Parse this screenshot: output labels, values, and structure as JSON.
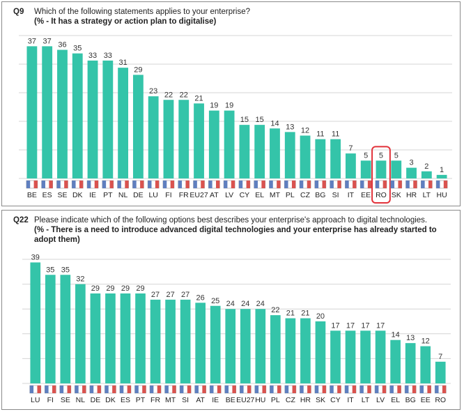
{
  "colors": {
    "bar": "#34c4a9",
    "highlight": "#e2323a",
    "grid": "#d4d4d4"
  },
  "q9": {
    "number": "Q9",
    "question": "Which of the following statements applies to your enterprise?",
    "subtitle": "(% - It has a strategy or action plan to digitalise)"
  },
  "q22": {
    "number": "Q22",
    "question": "Please indicate which of the following options best describes your enterprise's approach to digital technologies.",
    "subtitle": "(% - There is a need to introduce advanced digital technologies and your enterprise has already started to adopt them)"
  },
  "chart_data": [
    {
      "type": "bar",
      "title": "Which of the following statements applies to your enterprise?",
      "subtitle": "(% - It has a strategy or action plan to digitalise)",
      "categories": [
        "BE",
        "ES",
        "SE",
        "DK",
        "IE",
        "PT",
        "NL",
        "DE",
        "LU",
        "FI",
        "FR",
        "EU27",
        "AT",
        "LV",
        "CY",
        "EL",
        "MT",
        "PL",
        "CZ",
        "BG",
        "SI",
        "IT",
        "EE",
        "RO",
        "SK",
        "HR",
        "LT",
        "HU"
      ],
      "values": [
        37,
        37,
        36,
        35,
        33,
        33,
        31,
        29,
        23,
        22,
        22,
        21,
        19,
        19,
        15,
        15,
        14,
        13,
        12,
        11,
        11,
        7,
        5,
        5,
        5,
        3,
        2,
        1
      ],
      "highlight": [
        "RO"
      ],
      "ylim": [
        0,
        40
      ],
      "grid": true
    },
    {
      "type": "bar",
      "title": "Please indicate which of the following options best describes your enterprise's approach to digital technologies.",
      "subtitle": "(% - There is a need to introduce advanced digital technologies and your enterprise has already started to adopt them)",
      "categories": [
        "LU",
        "FI",
        "SE",
        "NL",
        "DE",
        "DK",
        "ES",
        "PT",
        "FR",
        "MT",
        "SI",
        "AT",
        "IE",
        "BE",
        "EU27",
        "HU",
        "PL",
        "CZ",
        "HR",
        "SK",
        "CY",
        "IT",
        "LT",
        "LV",
        "EL",
        "BG",
        "EE",
        "RO"
      ],
      "values": [
        39,
        35,
        35,
        32,
        29,
        29,
        29,
        29,
        27,
        27,
        27,
        26,
        25,
        24,
        24,
        24,
        22,
        21,
        21,
        20,
        17,
        17,
        17,
        17,
        14,
        13,
        12,
        7
      ],
      "ylim": [
        0,
        40
      ],
      "grid": true
    }
  ]
}
